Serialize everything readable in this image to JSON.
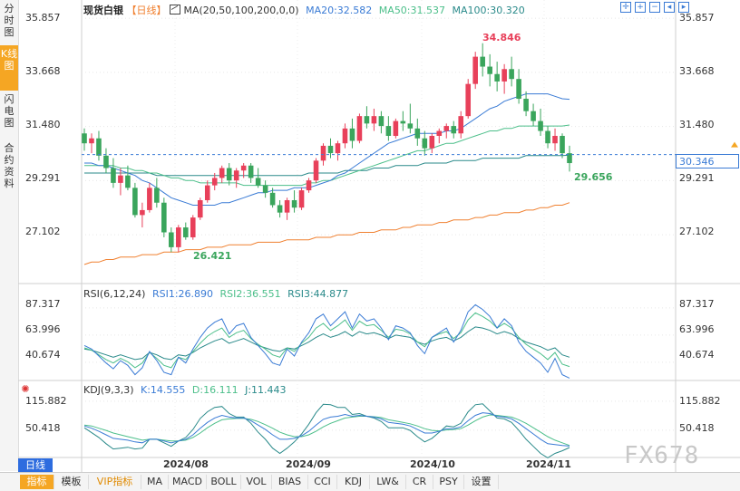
{
  "sidebar": {
    "tabs": [
      {
        "label": "分时图",
        "active": false
      },
      {
        "label": "K线图",
        "active": true
      },
      {
        "label": "闪电图",
        "active": false
      },
      {
        "label": "合约资料",
        "active": false
      }
    ]
  },
  "main_header": {
    "symbol": "现货白银",
    "period": "【日线】",
    "ma_label": "MA(20,50,100,200,0,0)",
    "ma20": "MA20:32.582",
    "ma50": "MA50:31.537",
    "ma100": "MA100:30.320"
  },
  "toolbar_icons": [
    "crosshair-icon",
    "zoom-in-icon",
    "zoom-out-icon",
    "left-icon",
    "right-icon"
  ],
  "price_axis": {
    "ticks": [
      "35.857",
      "33.668",
      "31.480",
      "29.291",
      "27.102"
    ]
  },
  "current_price": "30.346",
  "annotations": {
    "high": "34.846",
    "low": "26.421",
    "last_low": "29.656"
  },
  "rsi_panel": {
    "label": "RSI(6,12,24)",
    "rsi1": "RSI1:26.890",
    "rsi2": "RSI2:36.551",
    "rsi3": "RSI3:44.877",
    "ticks": [
      "87.317",
      "63.996",
      "40.674"
    ]
  },
  "kdj_panel": {
    "label": "KDJ(9,3,3)",
    "k": "K:14.555",
    "d": "D:16.111",
    "j": "J:11.443",
    "ticks": [
      "115.882",
      "50.418"
    ]
  },
  "x_axis": {
    "period_tag": "日线",
    "labels": [
      "2024/08",
      "2024/09",
      "2024/10",
      "2024/11"
    ]
  },
  "bottom_tabs": [
    "指标",
    "模板",
    "VIP指标",
    "MA",
    "MACD",
    "BOLL",
    "VOL",
    "BIAS",
    "CCI",
    "KDJ",
    "LW&",
    "CR",
    "PSY",
    "设置"
  ],
  "watermark": "FX678",
  "colors": {
    "up": "#e8405a",
    "down": "#3aa55c",
    "ma20": "#3a7bd5",
    "ma50": "#4cbf8a",
    "ma100": "#2a8a8a",
    "ma200": "#f08030",
    "accent": "#f5a623"
  },
  "chart_data": {
    "type": "candlestick",
    "x_labels": [
      "2024/08",
      "2024/09",
      "2024/10",
      "2024/11"
    ],
    "ylim": [
      25.9,
      36.3
    ],
    "candles": [
      [
        31.2,
        31.4,
        30.5,
        30.8
      ],
      [
        30.8,
        31.2,
        30.4,
        31.0
      ],
      [
        31.0,
        31.3,
        30.1,
        30.3
      ],
      [
        30.3,
        30.6,
        29.6,
        29.8
      ],
      [
        29.8,
        30.2,
        29.0,
        29.2
      ],
      [
        29.2,
        29.8,
        28.7,
        29.5
      ],
      [
        29.5,
        29.9,
        28.9,
        29.0
      ],
      [
        29.0,
        29.2,
        27.8,
        27.9
      ],
      [
        27.9,
        28.4,
        27.4,
        28.1
      ],
      [
        28.1,
        29.2,
        28.0,
        29.0
      ],
      [
        29.0,
        29.4,
        28.2,
        28.4
      ],
      [
        28.4,
        28.6,
        27.0,
        27.2
      ],
      [
        27.2,
        27.4,
        26.4,
        26.6
      ],
      [
        26.6,
        27.5,
        26.4,
        27.4
      ],
      [
        27.4,
        27.6,
        26.9,
        27.0
      ],
      [
        27.0,
        27.9,
        26.9,
        27.8
      ],
      [
        27.8,
        28.6,
        27.7,
        28.5
      ],
      [
        28.5,
        29.3,
        28.4,
        29.1
      ],
      [
        29.1,
        29.6,
        28.9,
        29.4
      ],
      [
        29.4,
        29.9,
        29.2,
        29.8
      ],
      [
        29.8,
        30.0,
        29.1,
        29.3
      ],
      [
        29.3,
        29.8,
        29.0,
        29.7
      ],
      [
        29.7,
        30.0,
        29.4,
        29.9
      ],
      [
        29.9,
        30.0,
        29.2,
        29.4
      ],
      [
        29.4,
        29.8,
        29.0,
        29.1
      ],
      [
        29.1,
        29.3,
        28.6,
        28.8
      ],
      [
        28.8,
        29.0,
        28.2,
        28.3
      ],
      [
        28.3,
        28.5,
        27.8,
        28.0
      ],
      [
        28.0,
        28.6,
        27.7,
        28.5
      ],
      [
        28.5,
        28.9,
        28.0,
        28.2
      ],
      [
        28.2,
        29.0,
        28.1,
        28.9
      ],
      [
        28.9,
        29.4,
        28.8,
        29.3
      ],
      [
        29.3,
        30.2,
        29.2,
        30.1
      ],
      [
        30.1,
        30.8,
        29.9,
        30.7
      ],
      [
        30.7,
        31.0,
        30.2,
        30.4
      ],
      [
        30.4,
        30.9,
        30.1,
        30.8
      ],
      [
        30.8,
        31.6,
        30.6,
        31.4
      ],
      [
        31.4,
        31.8,
        30.6,
        30.9
      ],
      [
        30.9,
        32.0,
        30.8,
        31.9
      ],
      [
        31.9,
        32.3,
        31.4,
        31.6
      ],
      [
        31.6,
        32.2,
        31.3,
        31.9
      ],
      [
        31.9,
        32.1,
        31.2,
        31.5
      ],
      [
        31.5,
        31.9,
        30.9,
        31.1
      ],
      [
        31.1,
        31.8,
        31.0,
        31.7
      ],
      [
        31.7,
        32.1,
        31.3,
        31.6
      ],
      [
        31.6,
        32.4,
        31.2,
        31.4
      ],
      [
        31.4,
        31.8,
        30.7,
        31.0
      ],
      [
        31.0,
        31.3,
        30.3,
        30.6
      ],
      [
        30.6,
        31.2,
        30.4,
        31.1
      ],
      [
        31.1,
        31.4,
        30.8,
        31.3
      ],
      [
        31.3,
        31.6,
        31.0,
        31.5
      ],
      [
        31.5,
        31.7,
        31.0,
        31.2
      ],
      [
        31.2,
        32.1,
        31.0,
        31.9
      ],
      [
        31.9,
        33.4,
        31.8,
        33.2
      ],
      [
        33.2,
        34.5,
        33.0,
        34.3
      ],
      [
        34.3,
        34.846,
        33.5,
        33.9
      ],
      [
        33.9,
        34.4,
        33.1,
        33.6
      ],
      [
        33.6,
        34.1,
        32.9,
        33.3
      ],
      [
        33.3,
        34.0,
        32.8,
        33.8
      ],
      [
        33.8,
        34.3,
        33.1,
        33.4
      ],
      [
        33.4,
        33.8,
        32.4,
        32.6
      ],
      [
        32.6,
        32.9,
        31.9,
        32.1
      ],
      [
        32.1,
        32.4,
        31.5,
        31.7
      ],
      [
        31.7,
        32.2,
        31.1,
        31.3
      ],
      [
        31.3,
        31.5,
        30.6,
        30.8
      ],
      [
        30.8,
        31.4,
        30.5,
        31.1
      ],
      [
        31.1,
        31.2,
        30.2,
        30.4
      ],
      [
        30.4,
        30.7,
        29.656,
        30.0
      ]
    ],
    "ma20": [
      30.0,
      30.0,
      29.9,
      29.9,
      29.8,
      29.7,
      29.6,
      29.5,
      29.3,
      29.2,
      29.0,
      28.8,
      28.6,
      28.5,
      28.4,
      28.3,
      28.3,
      28.3,
      28.3,
      28.4,
      28.4,
      28.5,
      28.6,
      28.7,
      28.8,
      28.8,
      28.9,
      28.9,
      28.9,
      29.0,
      29.0,
      29.0,
      29.1,
      29.2,
      29.3,
      29.5,
      29.6,
      29.8,
      30.0,
      30.2,
      30.4,
      30.6,
      30.8,
      30.9,
      31.0,
      31.1,
      31.2,
      31.2,
      31.2,
      31.2,
      31.3,
      31.3,
      31.4,
      31.6,
      31.8,
      32.0,
      32.2,
      32.3,
      32.5,
      32.6,
      32.7,
      32.8,
      32.8,
      32.8,
      32.8,
      32.7,
      32.6,
      32.58
    ],
    "ma50": [
      29.9,
      29.9,
      29.9,
      29.9,
      29.9,
      29.8,
      29.8,
      29.7,
      29.7,
      29.6,
      29.6,
      29.5,
      29.4,
      29.4,
      29.3,
      29.3,
      29.2,
      29.2,
      29.2,
      29.2,
      29.2,
      29.2,
      29.1,
      29.1,
      29.1,
      29.1,
      29.1,
      29.1,
      29.1,
      29.1,
      29.1,
      29.2,
      29.2,
      29.3,
      29.3,
      29.4,
      29.5,
      29.6,
      29.7,
      29.8,
      29.9,
      30.0,
      30.1,
      30.2,
      30.3,
      30.4,
      30.5,
      30.5,
      30.6,
      30.7,
      30.8,
      30.8,
      30.9,
      31.0,
      31.1,
      31.2,
      31.3,
      31.3,
      31.4,
      31.4,
      31.5,
      31.5,
      31.5,
      31.5,
      31.5,
      31.5,
      31.5,
      31.54
    ],
    "ma100": [
      29.6,
      29.6,
      29.6,
      29.6,
      29.6,
      29.6,
      29.6,
      29.6,
      29.6,
      29.6,
      29.5,
      29.5,
      29.5,
      29.5,
      29.5,
      29.5,
      29.5,
      29.5,
      29.5,
      29.5,
      29.5,
      29.5,
      29.5,
      29.5,
      29.5,
      29.5,
      29.5,
      29.5,
      29.5,
      29.5,
      29.5,
      29.6,
      29.6,
      29.6,
      29.6,
      29.6,
      29.7,
      29.7,
      29.7,
      29.7,
      29.8,
      29.8,
      29.8,
      29.9,
      29.9,
      29.9,
      29.9,
      30.0,
      30.0,
      30.0,
      30.0,
      30.1,
      30.1,
      30.1,
      30.1,
      30.2,
      30.2,
      30.2,
      30.2,
      30.2,
      30.2,
      30.3,
      30.3,
      30.3,
      30.3,
      30.3,
      30.3,
      30.32
    ],
    "ma200": [
      25.9,
      26.0,
      26.0,
      26.1,
      26.1,
      26.2,
      26.2,
      26.2,
      26.3,
      26.3,
      26.3,
      26.4,
      26.4,
      26.4,
      26.5,
      26.5,
      26.5,
      26.6,
      26.6,
      26.6,
      26.7,
      26.7,
      26.7,
      26.7,
      26.8,
      26.8,
      26.8,
      26.8,
      26.9,
      26.9,
      26.9,
      26.9,
      27.0,
      27.0,
      27.0,
      27.1,
      27.1,
      27.1,
      27.2,
      27.2,
      27.2,
      27.3,
      27.3,
      27.3,
      27.4,
      27.4,
      27.5,
      27.5,
      27.5,
      27.6,
      27.6,
      27.7,
      27.7,
      27.7,
      27.8,
      27.8,
      27.9,
      27.9,
      28.0,
      28.0,
      28.0,
      28.1,
      28.1,
      28.2,
      28.2,
      28.3,
      28.3,
      28.4
    ],
    "rsi_ylim": [
      25,
      95
    ],
    "rsi1": [
      55,
      52,
      46,
      40,
      35,
      42,
      38,
      30,
      36,
      50,
      42,
      32,
      30,
      45,
      40,
      52,
      62,
      70,
      75,
      78,
      65,
      72,
      74,
      62,
      55,
      48,
      40,
      38,
      52,
      46,
      58,
      66,
      78,
      82,
      72,
      78,
      84,
      70,
      82,
      76,
      78,
      70,
      60,
      72,
      70,
      66,
      55,
      48,
      62,
      66,
      70,
      58,
      68,
      84,
      90,
      86,
      80,
      70,
      78,
      72,
      58,
      50,
      45,
      40,
      32,
      44,
      30,
      27
    ],
    "rsi2": [
      53,
      51,
      47,
      43,
      40,
      44,
      41,
      36,
      40,
      49,
      44,
      38,
      36,
      45,
      43,
      50,
      57,
      63,
      67,
      70,
      62,
      66,
      68,
      61,
      56,
      52,
      47,
      45,
      53,
      50,
      57,
      62,
      70,
      74,
      68,
      72,
      77,
      68,
      76,
      72,
      73,
      68,
      62,
      69,
      68,
      65,
      58,
      54,
      62,
      65,
      67,
      61,
      66,
      77,
      83,
      80,
      76,
      70,
      74,
      70,
      62,
      56,
      52,
      48,
      43,
      49,
      39,
      37
    ],
    "rsi3": [
      52,
      51,
      49,
      47,
      45,
      47,
      45,
      43,
      44,
      49,
      47,
      44,
      43,
      47,
      46,
      49,
      53,
      56,
      59,
      61,
      57,
      59,
      61,
      58,
      55,
      53,
      51,
      50,
      53,
      52,
      55,
      58,
      62,
      65,
      62,
      64,
      67,
      63,
      67,
      65,
      66,
      64,
      61,
      64,
      63,
      62,
      58,
      56,
      59,
      61,
      62,
      59,
      62,
      67,
      71,
      70,
      68,
      65,
      67,
      65,
      61,
      58,
      56,
      54,
      51,
      53,
      47,
      45
    ],
    "kdj_ylim": [
      -5,
      130
    ],
    "k": [
      60,
      55,
      48,
      40,
      32,
      30,
      28,
      24,
      22,
      30,
      30,
      26,
      22,
      26,
      30,
      40,
      55,
      68,
      78,
      84,
      80,
      78,
      78,
      72,
      62,
      52,
      40,
      30,
      30,
      32,
      38,
      48,
      62,
      75,
      80,
      82,
      86,
      82,
      84,
      82,
      80,
      76,
      68,
      66,
      64,
      60,
      52,
      44,
      44,
      48,
      54,
      54,
      58,
      72,
      84,
      90,
      88,
      82,
      80,
      76,
      66,
      54,
      42,
      30,
      20,
      18,
      16,
      14.6
    ],
    "d": [
      62,
      60,
      55,
      50,
      44,
      40,
      36,
      32,
      28,
      30,
      30,
      28,
      26,
      26,
      28,
      34,
      44,
      56,
      66,
      74,
      76,
      77,
      77,
      75,
      70,
      63,
      55,
      46,
      40,
      36,
      36,
      40,
      48,
      58,
      66,
      72,
      78,
      80,
      82,
      82,
      81,
      79,
      74,
      71,
      68,
      65,
      60,
      54,
      50,
      49,
      51,
      52,
      54,
      62,
      72,
      80,
      85,
      84,
      82,
      80,
      74,
      66,
      56,
      46,
      36,
      28,
      22,
      16.1
    ],
    "j": [
      56,
      45,
      34,
      20,
      8,
      10,
      12,
      8,
      10,
      30,
      30,
      22,
      14,
      26,
      34,
      52,
      77,
      92,
      102,
      104,
      88,
      80,
      80,
      66,
      46,
      30,
      10,
      -2,
      10,
      24,
      42,
      64,
      90,
      109,
      108,
      102,
      102,
      86,
      88,
      82,
      78,
      70,
      56,
      56,
      56,
      50,
      36,
      24,
      32,
      46,
      60,
      58,
      66,
      92,
      108,
      110,
      94,
      78,
      76,
      68,
      50,
      30,
      14,
      -2,
      -12,
      -2,
      4,
      11.4
    ]
  }
}
